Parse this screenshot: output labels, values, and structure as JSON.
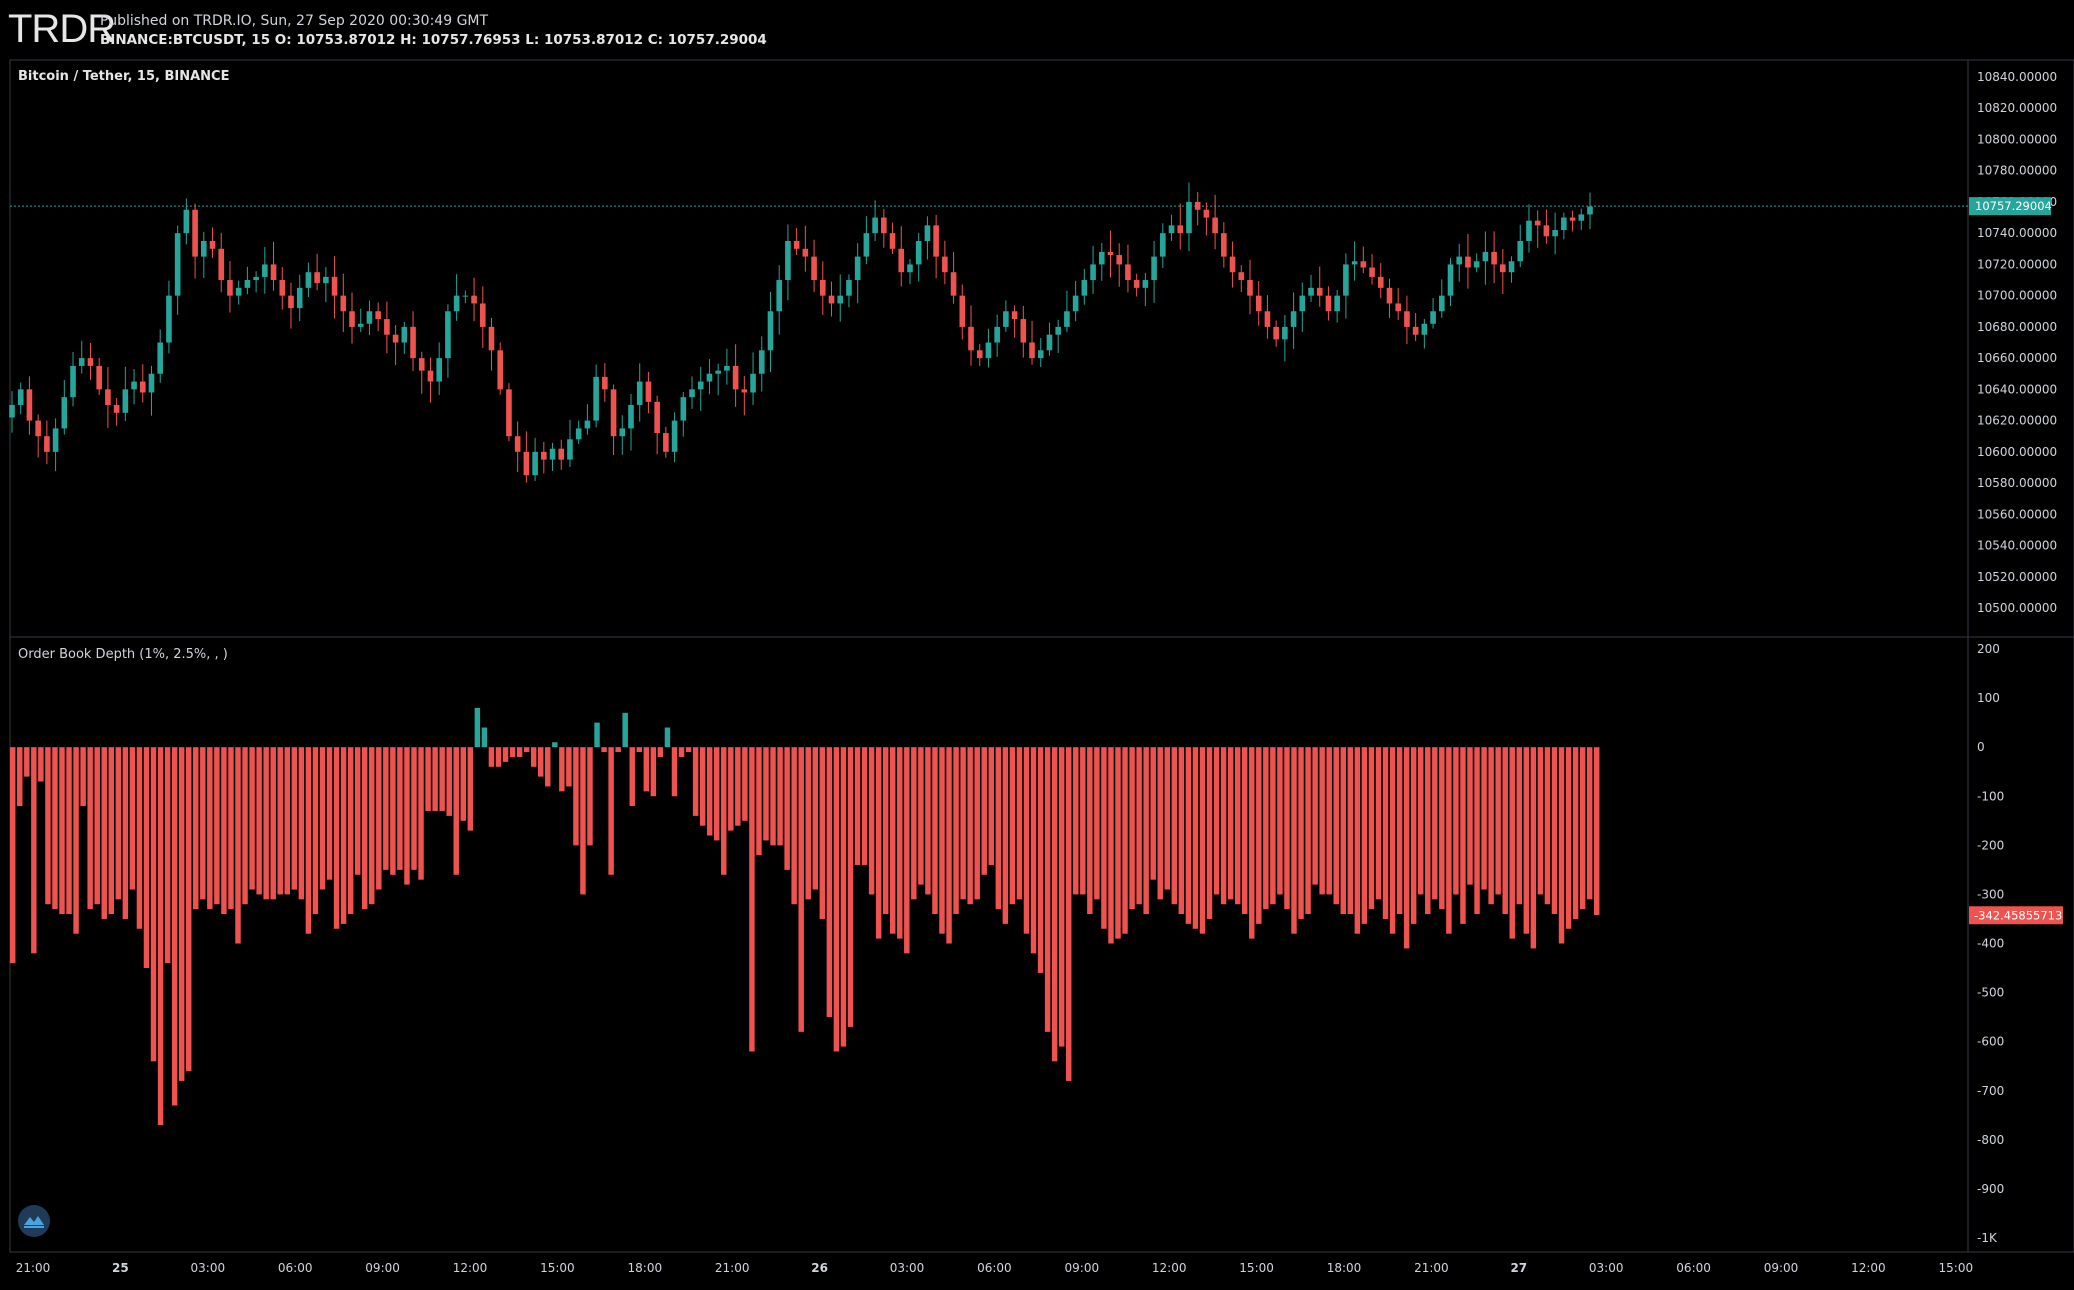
{
  "header": {
    "logo_text": "TRDR",
    "published": "Published on TRDR.IO, Sun, 27 Sep 2020 00:30:49 GMT",
    "ohlc": "BINANCE:BTCUSDT, 15 O: 10753.87012 H: 10757.76953 L: 10753.87012 C: 10757.29004"
  },
  "colors": {
    "up": "#26a69a",
    "down": "#ef5350",
    "bg": "#000000",
    "axis_text": "#d1d4dc"
  },
  "icons": {
    "bottom_left": "trdr-logo-icon"
  },
  "chart_data": [
    {
      "type": "candlestick",
      "title": "Bitcoin / Tether, 15, BINANCE",
      "ylim": [
        10490,
        10850
      ],
      "y_ticks": [
        "10840.00000",
        "10820.00000",
        "10800.00000",
        "10780.00000",
        "10760.00000",
        "10740.00000",
        "10720.00000",
        "10700.00000",
        "10680.00000",
        "10660.00000",
        "10640.00000",
        "10620.00000",
        "10600.00000",
        "10580.00000",
        "10560.00000",
        "10540.00000",
        "10520.00000",
        "10500.00000"
      ],
      "y_tick_values": [
        10840,
        10820,
        10800,
        10780,
        10760,
        10740,
        10720,
        10700,
        10680,
        10660,
        10640,
        10620,
        10600,
        10580,
        10560,
        10540,
        10520,
        10500
      ],
      "last_price_label": "10757.29004",
      "last_price": 10757.29,
      "bar_count": 182,
      "close": [
        10630,
        10640,
        10620,
        10610,
        10600,
        10615,
        10635,
        10655,
        10660,
        10655,
        10640,
        10630,
        10625,
        10640,
        10645,
        10638,
        10650,
        10670,
        10700,
        10740,
        10755,
        10725,
        10735,
        10730,
        10710,
        10700,
        10705,
        10710,
        10712,
        10720,
        10710,
        10700,
        10692,
        10705,
        10715,
        10708,
        10712,
        10700,
        10690,
        10680,
        10682,
        10690,
        10685,
        10675,
        10670,
        10680,
        10660,
        10652,
        10645,
        10660,
        10690,
        10700,
        10700,
        10695,
        10680,
        10665,
        10640,
        10610,
        10600,
        10585,
        10600,
        10595,
        10602,
        10595,
        10608,
        10615,
        10620,
        10648,
        10640,
        10610,
        10615,
        10630,
        10645,
        10632,
        10612,
        10600,
        10620,
        10635,
        10640,
        10645,
        10650,
        10652,
        10655,
        10640,
        10638,
        10650,
        10665,
        10690,
        10710,
        10735,
        10730,
        10725,
        10710,
        10700,
        10695,
        10700,
        10710,
        10725,
        10740,
        10750,
        10740,
        10730,
        10715,
        10720,
        10735,
        10745,
        10725,
        10715,
        10700,
        10680,
        10665,
        10660,
        10670,
        10680,
        10690,
        10685,
        10670,
        10660,
        10665,
        10675,
        10680,
        10690,
        10700,
        10710,
        10720,
        10728,
        10726,
        10720,
        10710,
        10705,
        10710,
        10725,
        10740,
        10745,
        10740,
        10760,
        10755,
        10750,
        10740,
        10725,
        10715,
        10710,
        10700,
        10690,
        10680,
        10672,
        10680,
        10690,
        10700,
        10705,
        10700,
        10690,
        10700,
        10720,
        10722,
        10718,
        10712,
        10705,
        10695,
        10690,
        10680,
        10675,
        10682,
        10690,
        10700,
        10720,
        10725,
        10718,
        10722,
        10728,
        10720,
        10715,
        10722,
        10735,
        10748,
        10745,
        10738,
        10742,
        10750,
        10748,
        10752,
        10757
      ],
      "x_tick_labels": [
        "21:00",
        "25",
        "03:00",
        "06:00",
        "09:00",
        "12:00",
        "15:00",
        "18:00",
        "21:00",
        "26",
        "03:00",
        "06:00",
        "09:00",
        "12:00",
        "15:00",
        "18:00",
        "21:00",
        "27",
        "03:00",
        "06:00",
        "09:00",
        "12:00",
        "15:00"
      ],
      "x_tick_bold": [
        "25",
        "26",
        "27"
      ]
    },
    {
      "type": "bar",
      "title": "Order Book Depth (1%, 2.5%, , )",
      "ylim": [
        -1000,
        200
      ],
      "y_ticks": [
        "200",
        "100",
        "0",
        "-100",
        "-200",
        "-300",
        "-400",
        "-500",
        "-600",
        "-700",
        "-800",
        "-900",
        "-1K"
      ],
      "y_tick_values": [
        200,
        100,
        0,
        -100,
        -200,
        -300,
        -400,
        -500,
        -600,
        -700,
        -800,
        -900,
        -1000
      ],
      "last_value_label": "-342.45855713",
      "last_value": -342.46,
      "values": [
        -440,
        -120,
        -60,
        -420,
        -70,
        -320,
        -330,
        -340,
        -340,
        -380,
        -120,
        -330,
        -320,
        -350,
        -340,
        -310,
        -350,
        -290,
        -370,
        -450,
        -640,
        -770,
        -440,
        -730,
        -680,
        -660,
        -330,
        -310,
        -330,
        -320,
        -340,
        -330,
        -400,
        -320,
        -290,
        -300,
        -310,
        -310,
        -300,
        -300,
        -290,
        -310,
        -380,
        -340,
        -290,
        -270,
        -370,
        -360,
        -340,
        -260,
        -330,
        -320,
        -290,
        -250,
        -260,
        -250,
        -280,
        -250,
        -270,
        -130,
        -130,
        -130,
        -140,
        -260,
        -150,
        -170,
        80,
        40,
        -40,
        -40,
        -30,
        -20,
        -20,
        -10,
        -40,
        -60,
        -80,
        10,
        -90,
        -80,
        -200,
        -300,
        -200,
        50,
        -10,
        -260,
        -10,
        70,
        -120,
        -10,
        -90,
        -100,
        -20,
        40,
        -100,
        -20,
        -10,
        -140,
        -160,
        -180,
        -190,
        -260,
        -170,
        -160,
        -150,
        -620,
        -220,
        -190,
        -200,
        -200,
        -250,
        -320,
        -580,
        -310,
        -290,
        -350,
        -550,
        -620,
        -610,
        -570,
        -240,
        -240,
        -300,
        -390,
        -340,
        -380,
        -390,
        -420,
        -310,
        -280,
        -300,
        -340,
        -380,
        -400,
        -340,
        -310,
        -320,
        -310,
        -260,
        -240,
        -330,
        -360,
        -320,
        -310,
        -380,
        -420,
        -460,
        -580,
        -640,
        -610,
        -680,
        -300,
        -300,
        -340,
        -310,
        -370,
        -400,
        -390,
        -380,
        -330,
        -320,
        -340,
        -270,
        -310,
        -290,
        -320,
        -340,
        -360,
        -370,
        -380,
        -350,
        -300,
        -320,
        -310,
        -320,
        -340,
        -390,
        -360,
        -330,
        -320,
        -300,
        -330,
        -380,
        -350,
        -340,
        -280,
        -300,
        -300,
        -320,
        -340,
        -340,
        -380,
        -360,
        -330,
        -310,
        -350,
        -380,
        -340,
        -410,
        -360,
        -300,
        -340,
        -310,
        -330,
        -380,
        -300,
        -360,
        -280,
        -340,
        -290,
        -320,
        -300,
        -340,
        -390,
        -320,
        -380,
        -410,
        -300,
        -320,
        -340,
        -400,
        -370,
        -350,
        -330,
        -310,
        -342
      ]
    }
  ]
}
